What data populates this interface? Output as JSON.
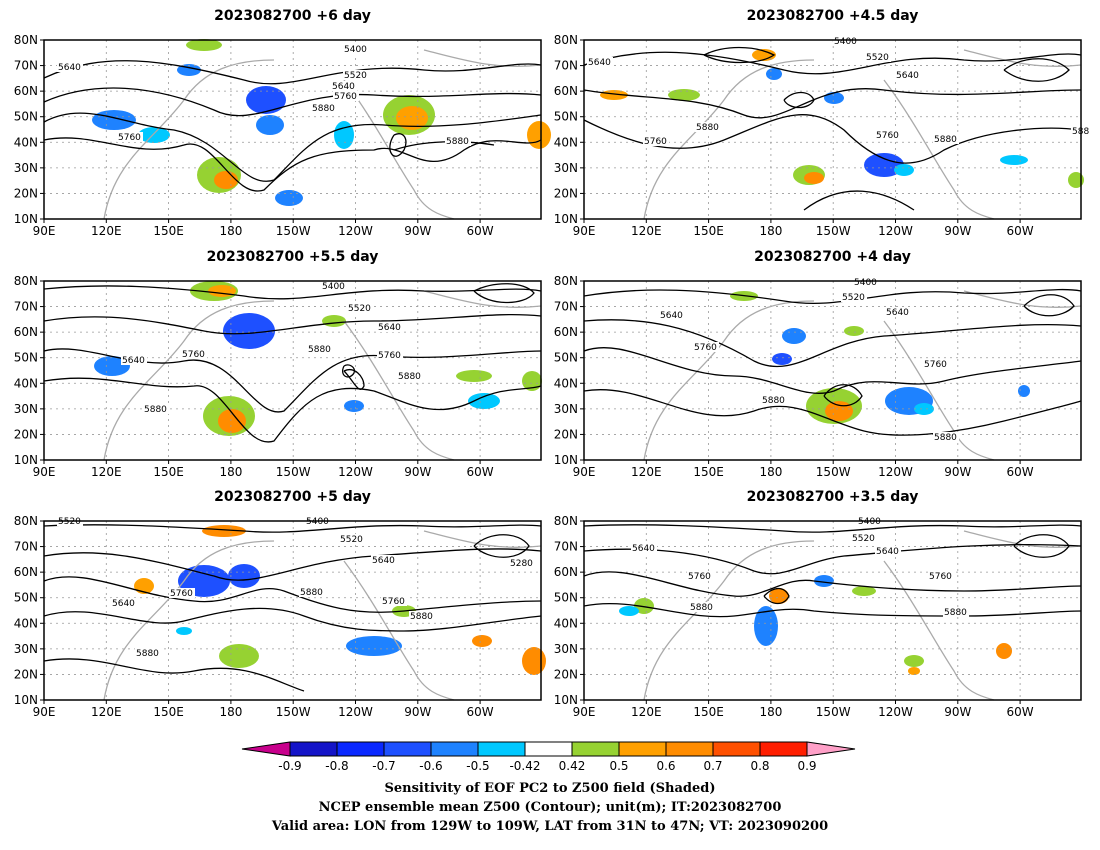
{
  "panels": [
    {
      "title": "2023082700  +6 day",
      "labels": [
        "5400",
        "5640",
        "5520",
        "5640",
        "5760",
        "5880",
        "5760",
        "5880"
      ]
    },
    {
      "title": "2023082700  +4.5 day",
      "labels": [
        "5400",
        "5640",
        "5520",
        "5640",
        "5880",
        "5760",
        "5760",
        "5880",
        "588"
      ]
    },
    {
      "title": "2023082700  +5.5 day",
      "labels": [
        "5400",
        "5520",
        "5640",
        "5640",
        "5760",
        "5880",
        "5760",
        "5880",
        "5880"
      ]
    },
    {
      "title": "2023082700  +4 day",
      "labels": [
        "5400",
        "5520",
        "5640",
        "5640",
        "5760",
        "5760",
        "5880",
        "5880"
      ]
    },
    {
      "title": "2023082700  +5 day",
      "labels": [
        "5520",
        "5400",
        "5520",
        "5640",
        "5280",
        "5640",
        "5760",
        "5880",
        "5760",
        "5880",
        "5880"
      ]
    },
    {
      "title": "2023082700  +3.5 day",
      "labels": [
        "5400",
        "5520",
        "5640",
        "5640",
        "5760",
        "5760",
        "5880",
        "5880"
      ]
    }
  ],
  "axes": {
    "lat_labels": [
      "80N",
      "70N",
      "60N",
      "50N",
      "40N",
      "30N",
      "20N",
      "10N"
    ],
    "lon_labels": [
      "90E",
      "120E",
      "150E",
      "180",
      "150W",
      "120W",
      "90W",
      "60W"
    ]
  },
  "colorbar": {
    "labels": [
      "-0.9",
      "-0.8",
      "-0.7",
      "-0.6",
      "-0.5",
      "-0.42",
      "0.42",
      "0.5",
      "0.6",
      "0.7",
      "0.8",
      "0.9"
    ],
    "colors": [
      "#1414c8",
      "#0a28ff",
      "#1e50ff",
      "#1e82ff",
      "#00c8ff",
      "#ffffff",
      "#96d232",
      "#ffa000",
      "#ff8c00",
      "#ff5000",
      "#ff1e00"
    ],
    "left_arrow_color": "#c8008c",
    "right_arrow_color": "#ffa0c8"
  },
  "footer": {
    "line1": "Sensitivity of EOF PC2 to Z500 field (Shaded)",
    "line2": "NCEP ensemble mean Z500 (Contour); unit(m); IT:2023082700",
    "line3": "Valid area: LON from 129W to 109W, LAT from 31N to 47N; VT: 2023090200"
  }
}
